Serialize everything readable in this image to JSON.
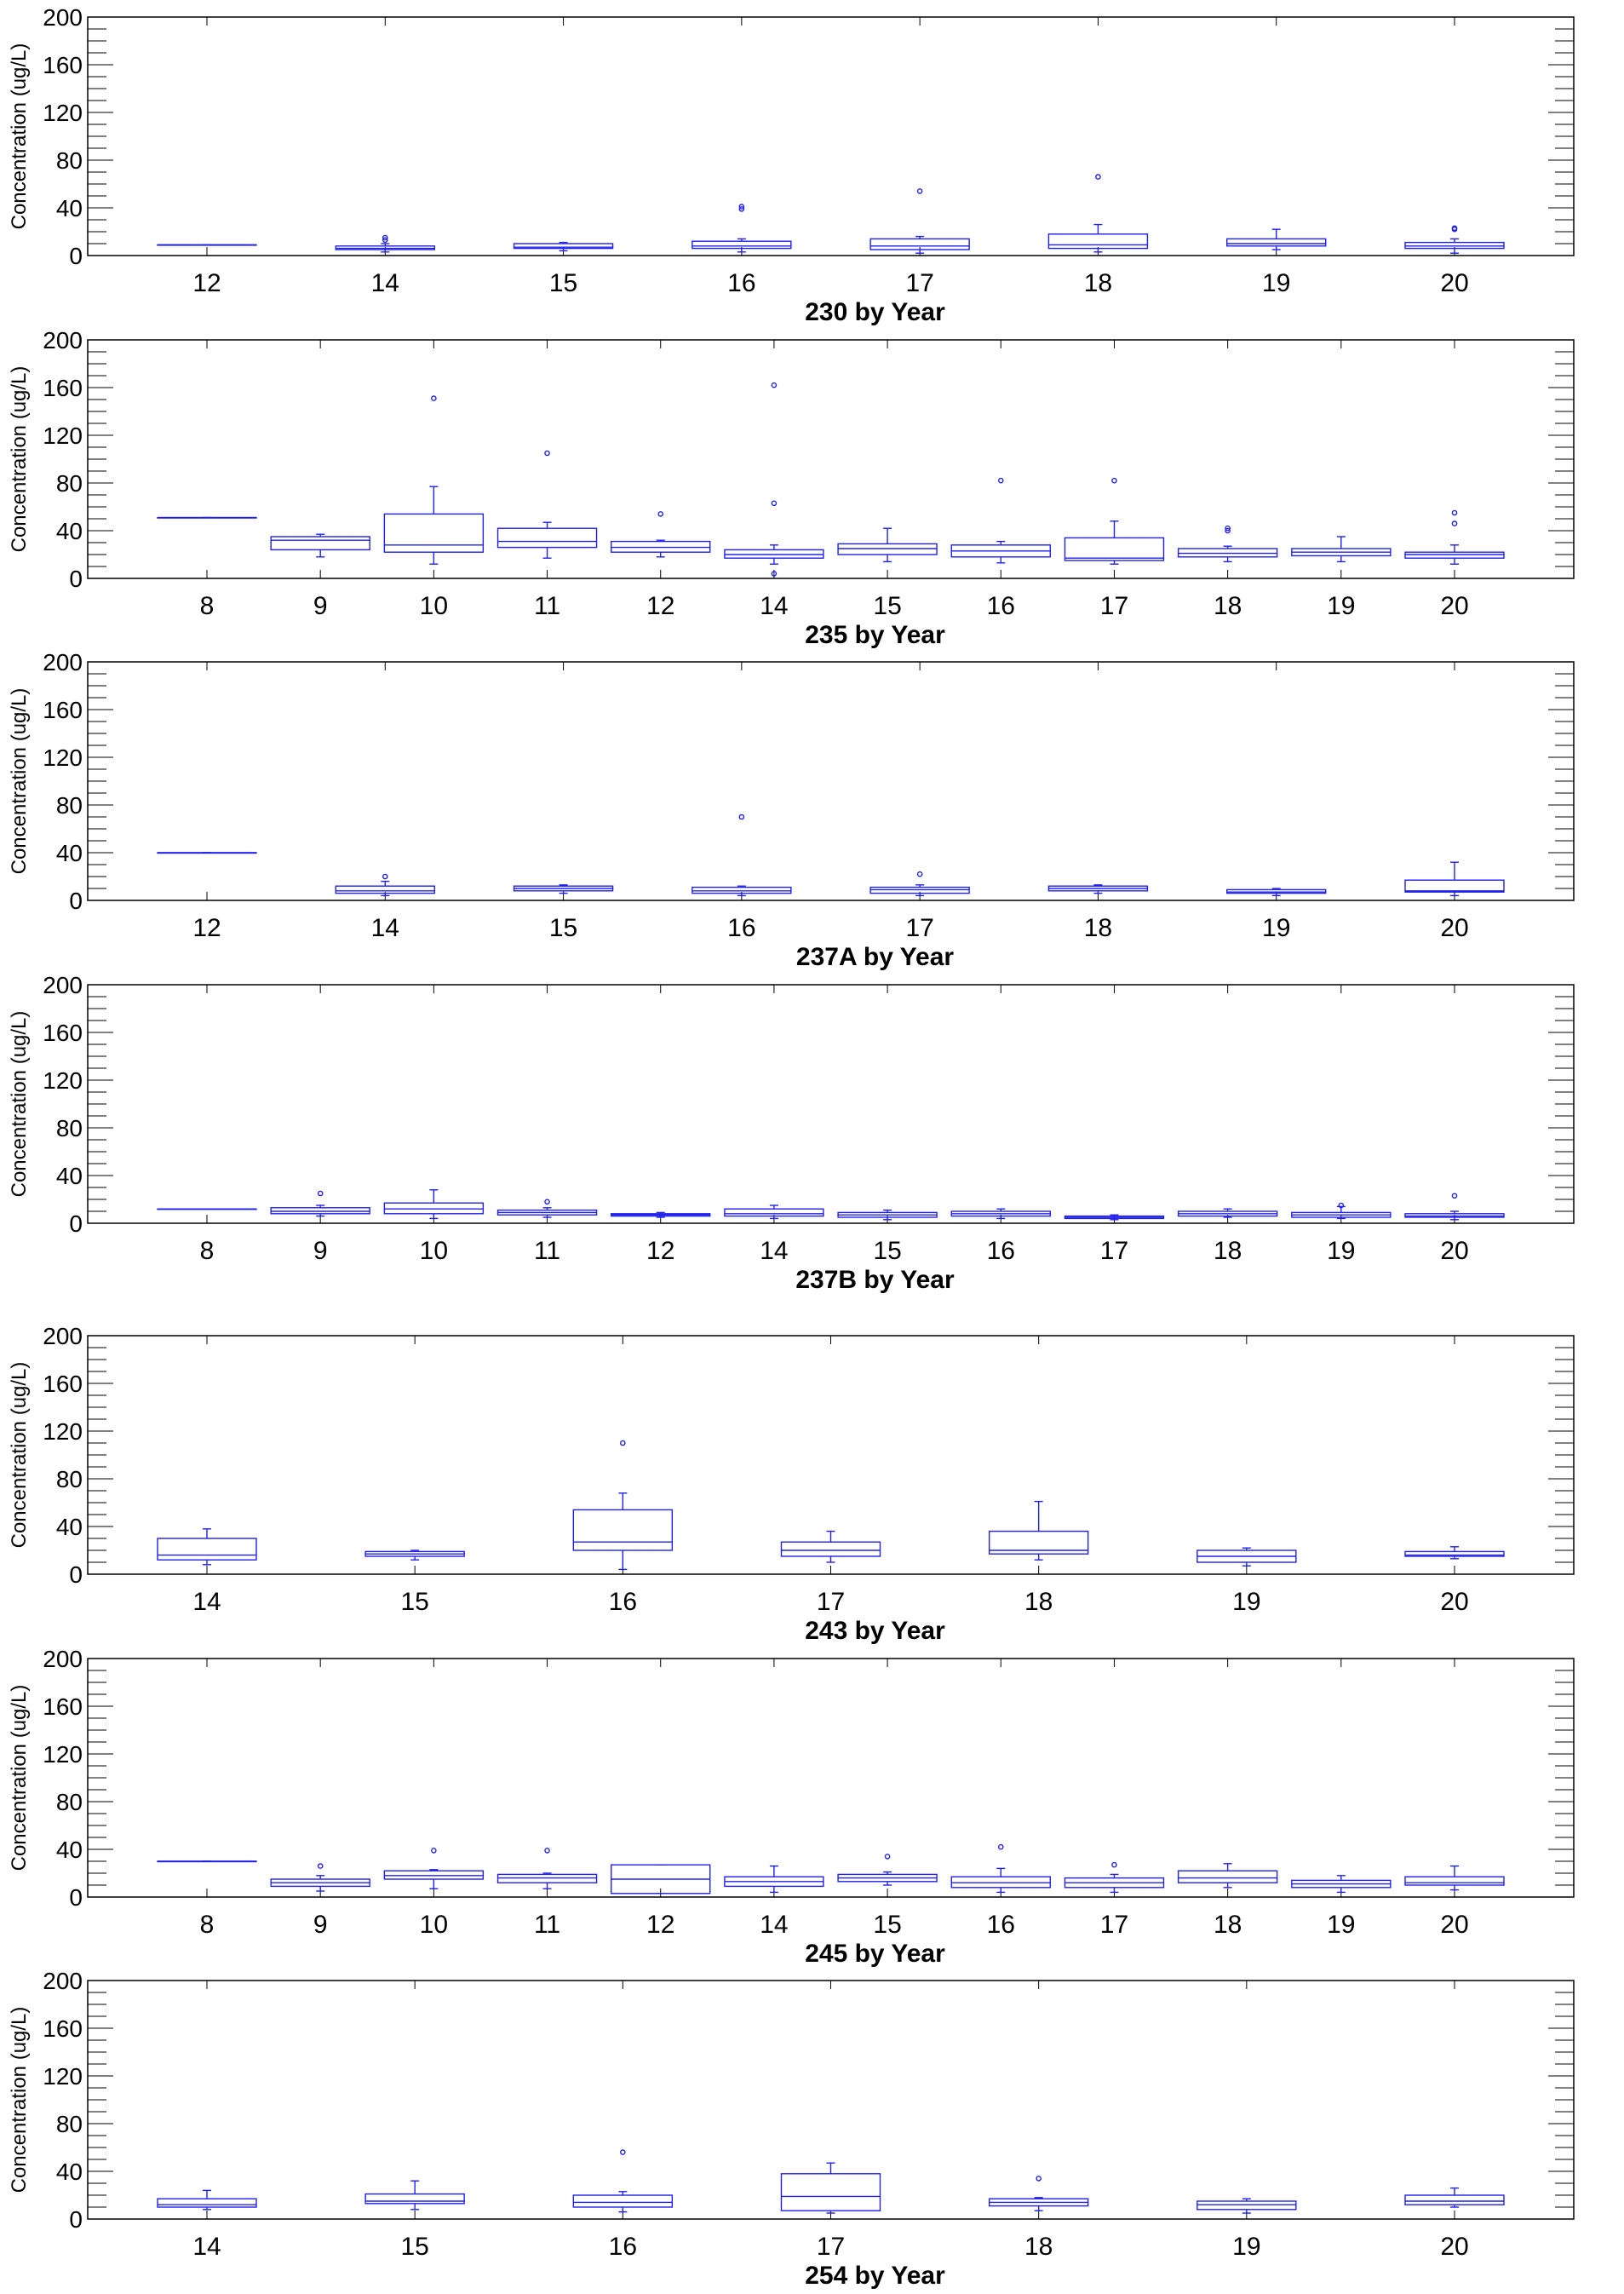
{
  "chart_data": [
    {
      "type": "box",
      "title": "230 by Year",
      "ylabel": "Concentration (ug/L)",
      "ylim": [
        0,
        200
      ],
      "yticks": [
        0,
        40,
        80,
        120,
        160,
        200
      ],
      "categories": [
        "12",
        "14",
        "15",
        "16",
        "17",
        "18",
        "19",
        "20"
      ],
      "boxes": [
        {
          "min": 9,
          "q1": 9,
          "median": 9,
          "q3": 9,
          "max": 9,
          "outliers": []
        },
        {
          "min": 3,
          "q1": 5,
          "median": 6,
          "q3": 8,
          "max": 10,
          "outliers": [
            13,
            15
          ]
        },
        {
          "min": 4,
          "q1": 6,
          "median": 7,
          "q3": 10,
          "max": 11,
          "outliers": []
        },
        {
          "min": 3,
          "q1": 6,
          "median": 8,
          "q3": 12,
          "max": 14,
          "outliers": [
            39,
            41
          ]
        },
        {
          "min": 2,
          "q1": 5,
          "median": 8,
          "q3": 14,
          "max": 16,
          "outliers": [
            54
          ]
        },
        {
          "min": 3,
          "q1": 6,
          "median": 9,
          "q3": 18,
          "max": 26,
          "outliers": [
            66
          ]
        },
        {
          "min": 5,
          "q1": 8,
          "median": 10,
          "q3": 14,
          "max": 22,
          "outliers": []
        },
        {
          "min": 2,
          "q1": 6,
          "median": 8,
          "q3": 11,
          "max": 14,
          "outliers": [
            22,
            23
          ]
        }
      ]
    },
    {
      "type": "box",
      "title": "235 by Year",
      "ylabel": "Concentration (ug/L)",
      "ylim": [
        0,
        200
      ],
      "yticks": [
        0,
        40,
        80,
        120,
        160,
        200
      ],
      "categories": [
        "8",
        "9",
        "10",
        "11",
        "12",
        "14",
        "15",
        "16",
        "17",
        "18",
        "19",
        "20"
      ],
      "boxes": [
        {
          "min": 51,
          "q1": 51,
          "median": 51,
          "q3": 51,
          "max": 51,
          "outliers": []
        },
        {
          "min": 18,
          "q1": 24,
          "median": 32,
          "q3": 35,
          "max": 37,
          "outliers": []
        },
        {
          "min": 12,
          "q1": 22,
          "median": 28,
          "q3": 54,
          "max": 77,
          "outliers": [
            151
          ]
        },
        {
          "min": 17,
          "q1": 26,
          "median": 31,
          "q3": 42,
          "max": 47,
          "outliers": [
            105
          ]
        },
        {
          "min": 18,
          "q1": 22,
          "median": 26,
          "q3": 31,
          "max": 32,
          "outliers": [
            54
          ]
        },
        {
          "min": 12,
          "q1": 17,
          "median": 20,
          "q3": 24,
          "max": 28,
          "outliers": [
            4,
            63,
            162
          ]
        },
        {
          "min": 14,
          "q1": 20,
          "median": 25,
          "q3": 29,
          "max": 42,
          "outliers": []
        },
        {
          "min": 13,
          "q1": 18,
          "median": 23,
          "q3": 28,
          "max": 31,
          "outliers": [
            82
          ]
        },
        {
          "min": 12,
          "q1": 15,
          "median": 17,
          "q3": 34,
          "max": 48,
          "outliers": [
            82
          ]
        },
        {
          "min": 14,
          "q1": 18,
          "median": 21,
          "q3": 25,
          "max": 27,
          "outliers": [
            40,
            42
          ]
        },
        {
          "min": 14,
          "q1": 19,
          "median": 22,
          "q3": 25,
          "max": 35,
          "outliers": []
        },
        {
          "min": 12,
          "q1": 17,
          "median": 20,
          "q3": 22,
          "max": 28,
          "outliers": [
            46,
            55
          ]
        }
      ]
    },
    {
      "type": "box",
      "title": "237A by Year",
      "ylabel": "Concentration (ug/L)",
      "ylim": [
        0,
        200
      ],
      "yticks": [
        0,
        40,
        80,
        120,
        160,
        200
      ],
      "categories": [
        "12",
        "14",
        "15",
        "16",
        "17",
        "18",
        "19",
        "20"
      ],
      "boxes": [
        {
          "min": 40,
          "q1": 40,
          "median": 40,
          "q3": 40,
          "max": 40,
          "outliers": []
        },
        {
          "min": 4,
          "q1": 6,
          "median": 8,
          "q3": 12,
          "max": 16,
          "outliers": [
            20
          ]
        },
        {
          "min": 6,
          "q1": 8,
          "median": 10,
          "q3": 12,
          "max": 13,
          "outliers": []
        },
        {
          "min": 4,
          "q1": 6,
          "median": 8,
          "q3": 11,
          "max": 12,
          "outliers": [
            70
          ]
        },
        {
          "min": 4,
          "q1": 6,
          "median": 9,
          "q3": 11,
          "max": 13,
          "outliers": [
            22
          ]
        },
        {
          "min": 6,
          "q1": 8,
          "median": 10,
          "q3": 12,
          "max": 13,
          "outliers": []
        },
        {
          "min": 4,
          "q1": 6,
          "median": 7,
          "q3": 9,
          "max": 10,
          "outliers": []
        },
        {
          "min": 4,
          "q1": 7,
          "median": 8,
          "q3": 17,
          "max": 32,
          "outliers": []
        }
      ]
    },
    {
      "type": "box",
      "title": "237B by Year",
      "ylabel": "Concentration (ug/L)",
      "ylim": [
        0,
        200
      ],
      "yticks": [
        0,
        40,
        80,
        120,
        160,
        200
      ],
      "categories": [
        "8",
        "9",
        "10",
        "11",
        "12",
        "14",
        "15",
        "16",
        "17",
        "18",
        "19",
        "20"
      ],
      "boxes": [
        {
          "min": 12,
          "q1": 12,
          "median": 12,
          "q3": 12,
          "max": 12,
          "outliers": []
        },
        {
          "min": 6,
          "q1": 8,
          "median": 10,
          "q3": 13,
          "max": 15,
          "outliers": [
            25
          ]
        },
        {
          "min": 4,
          "q1": 8,
          "median": 12,
          "q3": 17,
          "max": 28,
          "outliers": []
        },
        {
          "min": 5,
          "q1": 7,
          "median": 9,
          "q3": 11,
          "max": 13,
          "outliers": [
            18
          ]
        },
        {
          "min": 5,
          "q1": 6,
          "median": 7,
          "q3": 8,
          "max": 9,
          "outliers": []
        },
        {
          "min": 4,
          "q1": 6,
          "median": 8,
          "q3": 12,
          "max": 15,
          "outliers": []
        },
        {
          "min": 3,
          "q1": 5,
          "median": 7,
          "q3": 9,
          "max": 11,
          "outliers": []
        },
        {
          "min": 4,
          "q1": 6,
          "median": 8,
          "q3": 10,
          "max": 12,
          "outliers": []
        },
        {
          "min": 3,
          "q1": 4,
          "median": 5,
          "q3": 6,
          "max": 7,
          "outliers": []
        },
        {
          "min": 5,
          "q1": 6,
          "median": 8,
          "q3": 10,
          "max": 12,
          "outliers": []
        },
        {
          "min": 4,
          "q1": 5,
          "median": 7,
          "q3": 9,
          "max": 14,
          "outliers": [
            15
          ]
        },
        {
          "min": 3,
          "q1": 5,
          "median": 6,
          "q3": 8,
          "max": 10,
          "outliers": [
            23
          ]
        }
      ]
    },
    {
      "type": "box",
      "title": "243 by Year",
      "ylabel": "Concentration (ug/L)",
      "ylim": [
        0,
        200
      ],
      "yticks": [
        0,
        40,
        80,
        120,
        160,
        200
      ],
      "categories": [
        "14",
        "15",
        "16",
        "17",
        "18",
        "19",
        "20"
      ],
      "boxes": [
        {
          "min": 8,
          "q1": 12,
          "median": 16,
          "q3": 30,
          "max": 38,
          "outliers": []
        },
        {
          "min": 12,
          "q1": 15,
          "median": 17,
          "q3": 19,
          "max": 20,
          "outliers": []
        },
        {
          "min": 4,
          "q1": 20,
          "median": 27,
          "q3": 54,
          "max": 68,
          "outliers": [
            110
          ]
        },
        {
          "min": 10,
          "q1": 15,
          "median": 20,
          "q3": 27,
          "max": 36,
          "outliers": []
        },
        {
          "min": 12,
          "q1": 17,
          "median": 20,
          "q3": 36,
          "max": 61,
          "outliers": []
        },
        {
          "min": 7,
          "q1": 10,
          "median": 15,
          "q3": 20,
          "max": 22,
          "outliers": []
        },
        {
          "min": 13,
          "q1": 15,
          "median": 16,
          "q3": 19,
          "max": 23,
          "outliers": []
        }
      ]
    },
    {
      "type": "box",
      "title": "245 by Year",
      "ylabel": "Concentration (ug/L)",
      "ylim": [
        0,
        200
      ],
      "yticks": [
        0,
        40,
        80,
        120,
        160,
        200
      ],
      "categories": [
        "8",
        "9",
        "10",
        "11",
        "12",
        "14",
        "15",
        "16",
        "17",
        "18",
        "19",
        "20"
      ],
      "boxes": [
        {
          "min": 30,
          "q1": 30,
          "median": 30,
          "q3": 30,
          "max": 30,
          "outliers": []
        },
        {
          "min": 5,
          "q1": 9,
          "median": 12,
          "q3": 15,
          "max": 18,
          "outliers": [
            26
          ]
        },
        {
          "min": 7,
          "q1": 15,
          "median": 18,
          "q3": 22,
          "max": 23,
          "outliers": [
            39
          ]
        },
        {
          "min": 7,
          "q1": 12,
          "median": 16,
          "q3": 19,
          "max": 20,
          "outliers": [
            39
          ]
        },
        {
          "min": 3,
          "q1": 3,
          "median": 15,
          "q3": 27,
          "max": 27,
          "outliers": []
        },
        {
          "min": 4,
          "q1": 9,
          "median": 13,
          "q3": 17,
          "max": 26,
          "outliers": []
        },
        {
          "min": 10,
          "q1": 13,
          "median": 16,
          "q3": 19,
          "max": 21,
          "outliers": [
            34
          ]
        },
        {
          "min": 4,
          "q1": 8,
          "median": 12,
          "q3": 17,
          "max": 24,
          "outliers": [
            42
          ]
        },
        {
          "min": 4,
          "q1": 8,
          "median": 12,
          "q3": 16,
          "max": 19,
          "outliers": [
            27
          ]
        },
        {
          "min": 8,
          "q1": 12,
          "median": 16,
          "q3": 22,
          "max": 28,
          "outliers": []
        },
        {
          "min": 4,
          "q1": 8,
          "median": 11,
          "q3": 14,
          "max": 18,
          "outliers": []
        },
        {
          "min": 6,
          "q1": 10,
          "median": 12,
          "q3": 17,
          "max": 26,
          "outliers": []
        }
      ]
    },
    {
      "type": "box",
      "title": "254 by Year",
      "ylabel": "Concentration (ug/L)",
      "ylim": [
        0,
        200
      ],
      "yticks": [
        0,
        40,
        80,
        120,
        160,
        200
      ],
      "categories": [
        "14",
        "15",
        "16",
        "17",
        "18",
        "19",
        "20"
      ],
      "boxes": [
        {
          "min": 8,
          "q1": 10,
          "median": 12,
          "q3": 17,
          "max": 24,
          "outliers": []
        },
        {
          "min": 8,
          "q1": 13,
          "median": 15,
          "q3": 21,
          "max": 32,
          "outliers": []
        },
        {
          "min": 6,
          "q1": 10,
          "median": 14,
          "q3": 20,
          "max": 23,
          "outliers": [
            56
          ]
        },
        {
          "min": 5,
          "q1": 7,
          "median": 19,
          "q3": 38,
          "max": 47,
          "outliers": []
        },
        {
          "min": 7,
          "q1": 11,
          "median": 14,
          "q3": 17,
          "max": 18,
          "outliers": [
            34
          ]
        },
        {
          "min": 5,
          "q1": 8,
          "median": 12,
          "q3": 15,
          "max": 17,
          "outliers": []
        },
        {
          "min": 10,
          "q1": 12,
          "median": 15,
          "q3": 20,
          "max": 26,
          "outliers": []
        }
      ]
    }
  ],
  "colors": {
    "box": "#2020ee",
    "axis": "#000000",
    "text": "#000000",
    "background": "#ffffff"
  }
}
